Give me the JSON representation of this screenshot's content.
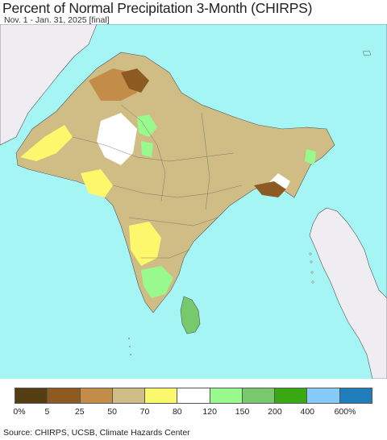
{
  "header": {
    "title": "Percent of Normal Precipitation 3-Month (CHIRPS)",
    "subtitle": "Nov. 1 - Jan. 31, 2025 [final]"
  },
  "map": {
    "colors": {
      "ocean": "#a6f5f5",
      "land_outside": "#efecf2",
      "border": "#555555"
    }
  },
  "legend": {
    "colors": [
      "#563e14",
      "#8d5a22",
      "#c38c48",
      "#d0bd86",
      "#fcf86b",
      "#ffffff",
      "#98f98c",
      "#78c96b",
      "#3aa813",
      "#86cbf8",
      "#1f7dbb"
    ],
    "labels": [
      "0%",
      "5",
      "25",
      "50",
      "70",
      "80",
      "120",
      "150",
      "200",
      "400",
      "600%"
    ]
  },
  "footer": {
    "source": "Source: CHIRPS, UCSB, Climate Hazards Center"
  }
}
